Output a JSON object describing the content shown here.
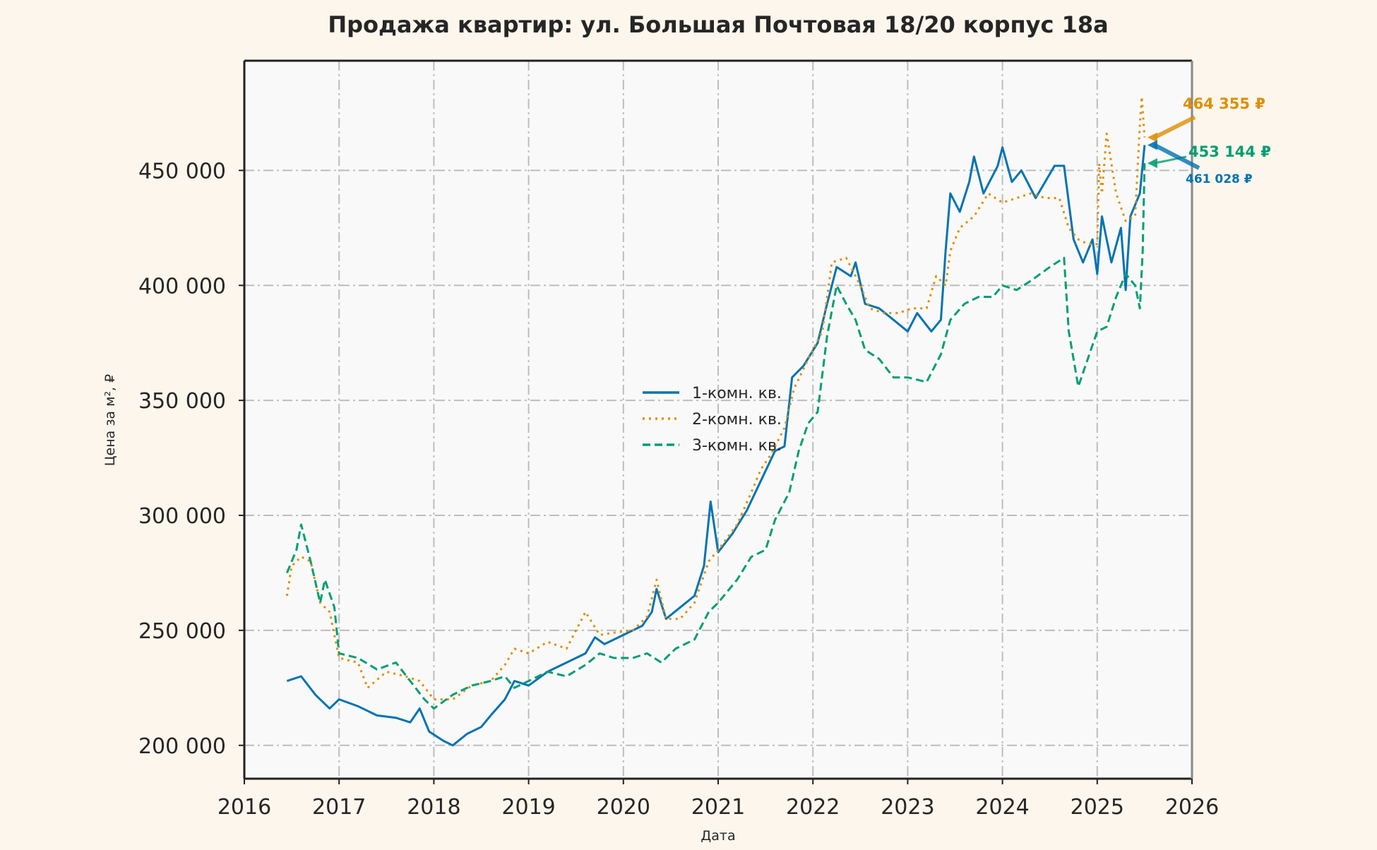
{
  "chart_data": {
    "type": "line",
    "title": "Продажа квартир: ул. Большая Почтовая 18/20 корпус 18а",
    "xlabel": "Дата",
    "ylabel": "Цена за м², ₽",
    "xlim": [
      2016,
      2026
    ],
    "ylim": [
      185500,
      497700
    ],
    "x_ticks": [
      "2016",
      "2017",
      "2018",
      "2019",
      "2020",
      "2021",
      "2022",
      "2023",
      "2024",
      "2025",
      "2026"
    ],
    "y_ticks": [
      "200 000",
      "250 000",
      "300 000",
      "350 000",
      "400 000",
      "450 000"
    ],
    "y_tick_values": [
      200000,
      250000,
      300000,
      350000,
      400000,
      450000
    ],
    "grid": true,
    "legend_position": "center",
    "series": [
      {
        "name": "1-комн. кв.",
        "color": "#0173b2",
        "style": "solid",
        "x": [
          2016.45,
          2016.6,
          2016.75,
          2016.9,
          2017.0,
          2017.2,
          2017.4,
          2017.6,
          2017.75,
          2017.85,
          2017.95,
          2018.1,
          2018.2,
          2018.35,
          2018.5,
          2018.6,
          2018.75,
          2018.85,
          2019.0,
          2019.2,
          2019.4,
          2019.6,
          2019.7,
          2019.8,
          2020.0,
          2020.2,
          2020.3,
          2020.35,
          2020.45,
          2020.6,
          2020.75,
          2020.85,
          2020.92,
          2021.0,
          2021.15,
          2021.3,
          2021.45,
          2021.6,
          2021.7,
          2021.78,
          2021.9,
          2022.05,
          2022.15,
          2022.25,
          2022.4,
          2022.45,
          2022.55,
          2022.7,
          2022.85,
          2023.0,
          2023.1,
          2023.25,
          2023.35,
          2023.4,
          2023.45,
          2023.55,
          2023.65,
          2023.7,
          2023.8,
          2023.95,
          2024.0,
          2024.1,
          2024.2,
          2024.35,
          2024.45,
          2024.55,
          2024.65,
          2024.75,
          2024.85,
          2024.95,
          2025.0,
          2025.05,
          2025.15,
          2025.25,
          2025.3,
          2025.35,
          2025.45,
          2025.5
        ],
        "y": [
          228000,
          230000,
          222000,
          216000,
          220000,
          217000,
          213000,
          212000,
          210000,
          216000,
          206000,
          202000,
          200000,
          205000,
          208000,
          213000,
          220000,
          228000,
          226000,
          232000,
          236000,
          240000,
          247000,
          244000,
          248000,
          252000,
          258000,
          268000,
          255000,
          260000,
          265000,
          278000,
          306000,
          284000,
          292000,
          302000,
          315000,
          328000,
          330000,
          360000,
          365000,
          375000,
          392000,
          408000,
          404000,
          410000,
          392000,
          390000,
          385000,
          380000,
          388000,
          380000,
          385000,
          415000,
          440000,
          432000,
          445000,
          456000,
          440000,
          452000,
          460000,
          445000,
          450000,
          438000,
          445000,
          452000,
          452000,
          420000,
          410000,
          420000,
          405000,
          430000,
          410000,
          425000,
          398000,
          430000,
          440000,
          461028
        ]
      },
      {
        "name": "2-комн. кв.",
        "color": "#de8f05",
        "style": "dotted",
        "x": [
          2016.45,
          2016.5,
          2016.6,
          2016.7,
          2016.8,
          2016.9,
          2017.0,
          2017.2,
          2017.3,
          2017.5,
          2017.7,
          2017.85,
          2018.0,
          2018.2,
          2018.4,
          2018.6,
          2018.75,
          2018.85,
          2019.0,
          2019.2,
          2019.4,
          2019.5,
          2019.6,
          2019.75,
          2019.9,
          2020.1,
          2020.25,
          2020.35,
          2020.45,
          2020.6,
          2020.75,
          2020.9,
          2021.0,
          2021.2,
          2021.35,
          2021.45,
          2021.55,
          2021.7,
          2021.8,
          2021.95,
          2022.1,
          2022.2,
          2022.35,
          2022.5,
          2022.6,
          2022.75,
          2022.9,
          2023.05,
          2023.2,
          2023.3,
          2023.4,
          2023.45,
          2023.55,
          2023.7,
          2023.85,
          2024.0,
          2024.15,
          2024.3,
          2024.45,
          2024.6,
          2024.7,
          2024.8,
          2024.9,
          2025.0,
          2025.02,
          2025.05,
          2025.1,
          2025.2,
          2025.3,
          2025.4,
          2025.45,
          2025.47,
          2025.5
        ],
        "y": [
          265000,
          278000,
          282000,
          280000,
          262000,
          258000,
          238000,
          236000,
          225000,
          232000,
          230000,
          228000,
          220000,
          220000,
          226000,
          228000,
          235000,
          242000,
          240000,
          245000,
          242000,
          250000,
          258000,
          248000,
          249000,
          250000,
          256000,
          272000,
          255000,
          255000,
          262000,
          280000,
          285000,
          296000,
          310000,
          320000,
          326000,
          338000,
          355000,
          368000,
          380000,
          410000,
          412000,
          400000,
          390000,
          388000,
          388000,
          390000,
          390000,
          404000,
          400000,
          415000,
          425000,
          430000,
          440000,
          436000,
          438000,
          440000,
          438000,
          438000,
          425000,
          420000,
          418000,
          418000,
          453000,
          440000,
          466000,
          440000,
          428000,
          430000,
          470000,
          482000,
          464355
        ]
      },
      {
        "name": "3-комн. кв.",
        "color": "#029e73",
        "style": "dashed",
        "x": [
          2016.45,
          2016.55,
          2016.6,
          2016.7,
          2016.8,
          2016.85,
          2016.95,
          2017.0,
          2017.2,
          2017.4,
          2017.6,
          2017.75,
          2017.9,
          2018.0,
          2018.2,
          2018.4,
          2018.6,
          2018.75,
          2018.85,
          2019.0,
          2019.2,
          2019.4,
          2019.6,
          2019.75,
          2019.9,
          2020.1,
          2020.25,
          2020.4,
          2020.55,
          2020.75,
          2020.9,
          2021.0,
          2021.2,
          2021.35,
          2021.5,
          2021.6,
          2021.75,
          2021.85,
          2021.95,
          2022.05,
          2022.15,
          2022.25,
          2022.35,
          2022.45,
          2022.55,
          2022.7,
          2022.85,
          2023.0,
          2023.2,
          2023.35,
          2023.45,
          2023.6,
          2023.75,
          2023.9,
          2024.0,
          2024.15,
          2024.3,
          2024.5,
          2024.65,
          2024.7,
          2024.8,
          2024.9,
          2025.0,
          2025.1,
          2025.2,
          2025.3,
          2025.4,
          2025.45,
          2025.48,
          2025.5
        ],
        "y": [
          275000,
          285000,
          296000,
          280000,
          262000,
          272000,
          260000,
          240000,
          238000,
          233000,
          236000,
          228000,
          220000,
          216000,
          222000,
          226000,
          228000,
          230000,
          225000,
          228000,
          232000,
          230000,
          235000,
          240000,
          238000,
          238000,
          240000,
          236000,
          242000,
          246000,
          258000,
          262000,
          272000,
          282000,
          285000,
          298000,
          310000,
          328000,
          340000,
          345000,
          378000,
          400000,
          392000,
          385000,
          372000,
          368000,
          360000,
          360000,
          358000,
          370000,
          385000,
          392000,
          395000,
          395000,
          400000,
          398000,
          402000,
          408000,
          412000,
          380000,
          356000,
          368000,
          380000,
          382000,
          395000,
          405000,
          400000,
          390000,
          415000,
          453144
        ]
      }
    ],
    "annotations": [
      {
        "text": "464 355 ₽",
        "series": "2-комн. кв.",
        "x": 2025.5,
        "y": 464355,
        "color": "#de8f05"
      },
      {
        "text": "453 144 ₽",
        "series": "3-комн. кв.",
        "x": 2025.5,
        "y": 453144,
        "color": "#029e73"
      },
      {
        "text": "461 028 ₽",
        "series": "1-комн. кв.",
        "x": 2025.5,
        "y": 461028,
        "color": "#0173b2"
      }
    ]
  }
}
